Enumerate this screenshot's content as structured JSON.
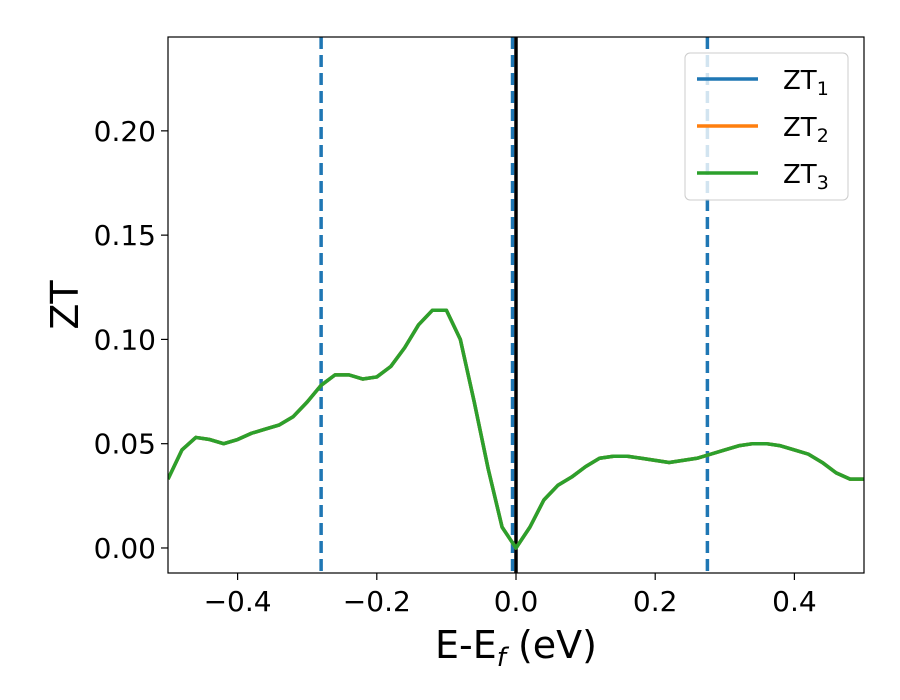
{
  "chart_data": {
    "type": "line",
    "title": "",
    "xlabel": "E-E",
    "xlabel_sub": "f",
    "xlabel_unit": " (eV)",
    "ylabel": "ZT",
    "xlim": [
      -0.5,
      0.5
    ],
    "ylim": [
      -0.012,
      0.245
    ],
    "xticks": [
      -0.4,
      -0.2,
      0.0,
      0.2,
      0.4
    ],
    "xtick_labels": [
      "−0.4",
      "−0.2",
      "0.0",
      "0.2",
      "0.4"
    ],
    "yticks": [
      0.0,
      0.05,
      0.1,
      0.15,
      0.2
    ],
    "ytick_labels": [
      "0.00",
      "0.05",
      "0.10",
      "0.15",
      "0.20"
    ],
    "grid": false,
    "legend": {
      "placement": "top-right",
      "entries": [
        {
          "base": "ZT",
          "sub": "1",
          "color": "#1f77b4"
        },
        {
          "base": "ZT",
          "sub": "2",
          "color": "#ff7f0e"
        },
        {
          "base": "ZT",
          "sub": "3",
          "color": "#2ca02c"
        }
      ]
    },
    "vlines": [
      {
        "x": -0.28,
        "style": "dashed",
        "color": "#1f77b4"
      },
      {
        "x": -0.005,
        "style": "dashed",
        "color": "#1f77b4"
      },
      {
        "x": 0.0,
        "style": "solid",
        "color": "#000000"
      },
      {
        "x": 0.275,
        "style": "dashed",
        "color": "#1f77b4"
      }
    ],
    "x": [
      -0.5,
      -0.48,
      -0.46,
      -0.44,
      -0.42,
      -0.4,
      -0.38,
      -0.36,
      -0.34,
      -0.32,
      -0.3,
      -0.28,
      -0.26,
      -0.24,
      -0.22,
      -0.2,
      -0.18,
      -0.16,
      -0.14,
      -0.12,
      -0.1,
      -0.08,
      -0.06,
      -0.04,
      -0.02,
      0.0,
      0.02,
      0.04,
      0.06,
      0.08,
      0.1,
      0.12,
      0.14,
      0.16,
      0.18,
      0.2,
      0.22,
      0.24,
      0.26,
      0.28,
      0.3,
      0.32,
      0.34,
      0.36,
      0.38,
      0.4,
      0.42,
      0.44,
      0.46,
      0.48,
      0.5
    ],
    "series": [
      {
        "name": "ZT1",
        "color": "#1f77b4",
        "values": [
          0.033,
          0.047,
          0.053,
          0.052,
          0.05,
          0.052,
          0.055,
          0.057,
          0.059,
          0.063,
          0.07,
          0.078,
          0.083,
          0.083,
          0.081,
          0.082,
          0.087,
          0.096,
          0.107,
          0.114,
          0.114,
          0.1,
          0.07,
          0.038,
          0.01,
          0.0,
          0.01,
          0.023,
          0.03,
          0.034,
          0.039,
          0.043,
          0.044,
          0.044,
          0.043,
          0.042,
          0.041,
          0.042,
          0.043,
          0.045,
          0.047,
          0.049,
          0.05,
          0.05,
          0.049,
          0.047,
          0.045,
          0.041,
          0.036,
          0.033,
          0.033
        ]
      },
      {
        "name": "ZT2",
        "color": "#ff7f0e",
        "values": [
          0.033,
          0.047,
          0.053,
          0.052,
          0.05,
          0.052,
          0.055,
          0.057,
          0.059,
          0.063,
          0.07,
          0.078,
          0.083,
          0.083,
          0.081,
          0.082,
          0.087,
          0.096,
          0.107,
          0.114,
          0.114,
          0.1,
          0.07,
          0.038,
          0.01,
          0.0,
          0.01,
          0.023,
          0.03,
          0.034,
          0.039,
          0.043,
          0.044,
          0.044,
          0.043,
          0.042,
          0.041,
          0.042,
          0.043,
          0.045,
          0.047,
          0.049,
          0.05,
          0.05,
          0.049,
          0.047,
          0.045,
          0.041,
          0.036,
          0.033,
          0.033
        ]
      },
      {
        "name": "ZT3",
        "color": "#2ca02c",
        "values": [
          0.033,
          0.047,
          0.053,
          0.052,
          0.05,
          0.052,
          0.055,
          0.057,
          0.059,
          0.063,
          0.07,
          0.078,
          0.083,
          0.083,
          0.081,
          0.082,
          0.087,
          0.096,
          0.107,
          0.114,
          0.114,
          0.1,
          0.07,
          0.038,
          0.01,
          0.0,
          0.01,
          0.023,
          0.03,
          0.034,
          0.039,
          0.043,
          0.044,
          0.044,
          0.043,
          0.042,
          0.041,
          0.042,
          0.043,
          0.045,
          0.047,
          0.049,
          0.05,
          0.05,
          0.049,
          0.047,
          0.045,
          0.041,
          0.036,
          0.033,
          0.033
        ]
      }
    ]
  }
}
